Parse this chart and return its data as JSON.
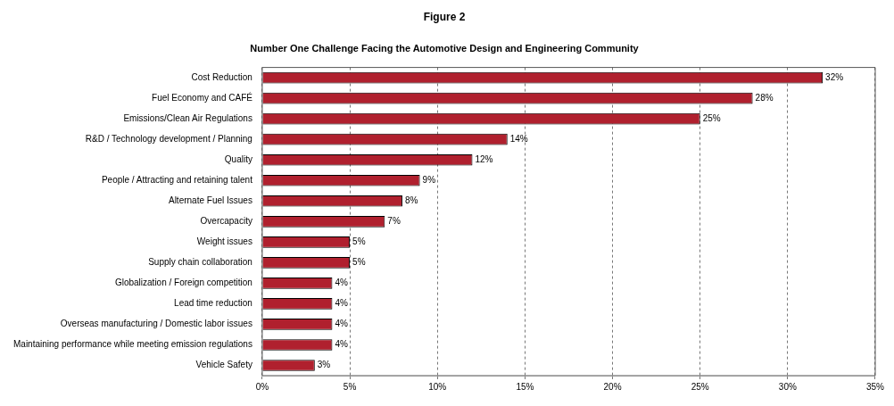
{
  "chart_data": {
    "type": "bar",
    "orientation": "horizontal",
    "title": "Figure 2",
    "subtitle": "Number One Challenge Facing the Automotive Design and Engineering Community",
    "categories": [
      "Cost Reduction",
      "Fuel Economy and CAFÉ",
      "Emissions/Clean Air Regulations",
      "R&D / Technology development / Planning",
      "Quality",
      "People / Attracting and retaining talent",
      "Alternate Fuel Issues",
      "Overcapacity",
      "Weight issues",
      "Supply chain collaboration",
      "Globalization / Foreign competition",
      "Lead time reduction",
      "Overseas manufacturing / Domestic labor issues",
      "Maintaining performance while meeting emission regulations",
      "Vehicle Safety"
    ],
    "values": [
      32,
      28,
      25,
      14,
      12,
      9,
      8,
      7,
      5,
      5,
      4,
      4,
      4,
      4,
      3
    ],
    "value_labels": [
      "32%",
      "28%",
      "25%",
      "14%",
      "12%",
      "9%",
      "8%",
      "7%",
      "5%",
      "5%",
      "4%",
      "4%",
      "4%",
      "4%",
      "3%"
    ],
    "color": "#b0202e",
    "xlim": [
      0,
      35
    ],
    "xticks": [
      {
        "value": 0,
        "label": "0%"
      },
      {
        "value": 5,
        "label": "5%"
      },
      {
        "value": 10,
        "label": "10%"
      },
      {
        "value": 15,
        "label": "15%"
      },
      {
        "value": 20,
        "label": "20%"
      },
      {
        "value": 25,
        "label": "25%"
      },
      {
        "value": 30,
        "label": "30%"
      },
      {
        "value": 35,
        "label": "35%"
      }
    ],
    "grid": "x",
    "legend": false
  }
}
